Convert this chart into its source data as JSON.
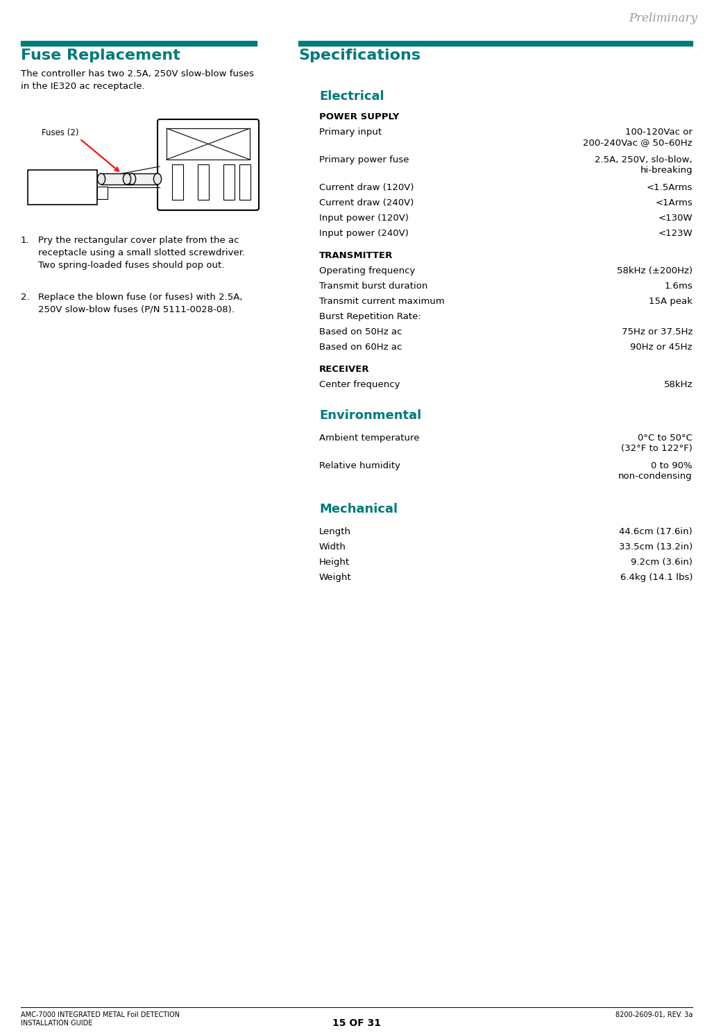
{
  "page_bg": "#ffffff",
  "teal_color": "#007A7A",
  "black_color": "#000000",
  "preliminary_text": "Preliminary",
  "left_title": "Fuse Replacement",
  "right_title": "Specifications",
  "left_intro": "The controller has two 2.5A, 250V slow-blow fuses\nin the IE320 ac receptacle.",
  "section_electrical": "Electrical",
  "section_environmental": "Environmental",
  "section_mechanical": "Mechanical",
  "footer_left_line1": "AMC-7000 INTEGRATED METAL Foil DETECTION",
  "footer_left_line2": "INSTALLATION GUIDE",
  "footer_center": "15 OF 31",
  "footer_right": "8200-2609-01, REV. 3a",
  "title_font_size": 16,
  "body_font_size": 9.5,
  "section_font_size": 13,
  "electrical_lines": [
    [
      "POWER SUPPLY",
      "",
      "bold"
    ],
    [
      "Primary input",
      "100-120Vac or\n200-240Vac @ 50–60Hz",
      "normal"
    ],
    [
      "Primary power fuse",
      "2.5A, 250V, slo-blow,\nhi-breaking",
      "normal"
    ],
    [
      "Current draw (120V)",
      "<1.5Arms",
      "normal"
    ],
    [
      "Current draw (240V)",
      "<1Arms",
      "normal"
    ],
    [
      "Input power (120V)",
      "<130W",
      "normal"
    ],
    [
      "Input power (240V)",
      "<123W",
      "normal"
    ],
    [
      "TRANSMITTER",
      "",
      "bold"
    ],
    [
      "Operating frequency",
      "58kHz (±200Hz)",
      "normal"
    ],
    [
      "Transmit burst duration",
      "1.6ms",
      "normal"
    ],
    [
      "Transmit current maximum",
      "15A peak",
      "normal"
    ],
    [
      "Burst Repetition Rate:",
      "",
      "normal_plain"
    ],
    [
      "Based on 50Hz ac",
      "75Hz or 37.5Hz",
      "normal"
    ],
    [
      "Based on 60Hz ac",
      "90Hz or 45Hz",
      "normal"
    ],
    [
      "RECEIVER",
      "",
      "bold"
    ],
    [
      "Center frequency",
      "58kHz",
      "normal"
    ]
  ],
  "environmental_lines": [
    [
      "Ambient temperature",
      "0°C to 50°C\n(32°F to 122°F)",
      "normal"
    ],
    [
      "Relative humidity",
      "0 to 90%\nnon-condensing",
      "normal"
    ]
  ],
  "mechanical_lines": [
    [
      "Length",
      "44.6cm (17.6in)",
      "normal"
    ],
    [
      "Width",
      "33.5cm (13.2in)",
      "normal"
    ],
    [
      "Height",
      "9.2cm (3.6in)",
      "normal"
    ],
    [
      "Weight",
      "6.4kg (14.1 lbs)",
      "normal"
    ]
  ],
  "steps": [
    [
      "1.",
      "Pry the rectangular cover plate from the ac\nreceptacle using a small slotted screwdriver.\nTwo spring-loaded fuses should pop out."
    ],
    [
      "2.",
      "Replace the blown fuse (or fuses) with 2.5A,\n250V slow-blow fuses (P/N 5111-0028-08)."
    ]
  ]
}
